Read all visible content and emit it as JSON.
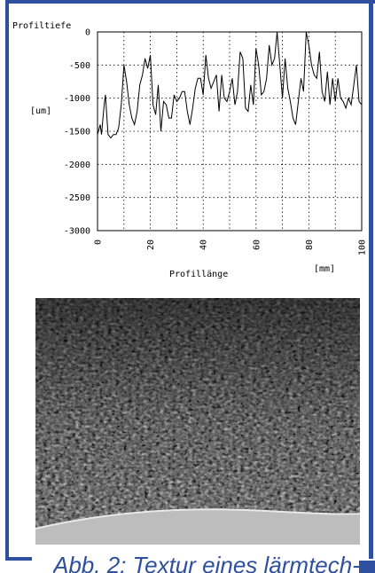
{
  "chart_data": {
    "type": "line",
    "ylabel": "Profiltiefe",
    "yunit": "[um]",
    "xlabel": "Profillänge",
    "xunit": "[mm]",
    "xlim": [
      0,
      100
    ],
    "ylim": [
      -3000,
      0
    ],
    "xticks": [
      0,
      20,
      40,
      60,
      80,
      100
    ],
    "yticks": [
      0,
      -500,
      -1000,
      -1500,
      -2000,
      -2500,
      -3000
    ],
    "grid": true,
    "series": [
      {
        "x": [
          0,
          1,
          1.5,
          2.5,
          3,
          3.5,
          4,
          5,
          6,
          7,
          8,
          9,
          10,
          11,
          12,
          13,
          14,
          15,
          16,
          17,
          18,
          19,
          20,
          21,
          22,
          23,
          24,
          25,
          26,
          27,
          28,
          29,
          30,
          31,
          32,
          33,
          34,
          35,
          36,
          37,
          38,
          39,
          40,
          41,
          42,
          43,
          44,
          45,
          46,
          47,
          48,
          49,
          50,
          51,
          52,
          53,
          54,
          55,
          56,
          57,
          58,
          59,
          60,
          61,
          62,
          63,
          64,
          65,
          66,
          67,
          68,
          69,
          70,
          71,
          72,
          73,
          74,
          75,
          76,
          77,
          78,
          79,
          80,
          81,
          82,
          83,
          84,
          85,
          86,
          87,
          88,
          89,
          90,
          91,
          92,
          93,
          94,
          95,
          96,
          97,
          98,
          99,
          100
        ],
        "y": [
          -1550,
          -1400,
          -1550,
          -1100,
          -950,
          -1250,
          -1550,
          -1600,
          -1550,
          -1550,
          -1450,
          -1100,
          -500,
          -750,
          -1100,
          -1300,
          -1400,
          -1200,
          -800,
          -650,
          -400,
          -550,
          -350,
          -1100,
          -1250,
          -800,
          -1500,
          -1050,
          -1100,
          -1300,
          -1300,
          -950,
          -1050,
          -1000,
          -900,
          -900,
          -1200,
          -1400,
          -1150,
          -850,
          -700,
          -700,
          -950,
          -350,
          -700,
          -850,
          -750,
          -650,
          -1200,
          -650,
          -1000,
          -1050,
          -900,
          -700,
          -1100,
          -900,
          -300,
          -400,
          -1150,
          -1200,
          -800,
          -1100,
          -250,
          -500,
          -950,
          -900,
          -700,
          -200,
          -500,
          -400,
          0,
          -500,
          -1000,
          -400,
          -850,
          -1050,
          -1300,
          -1400,
          -1050,
          -700,
          -900,
          0,
          -200,
          -500,
          -650,
          -700,
          -300,
          -900,
          -1050,
          -600,
          -1100,
          -700,
          -1050,
          -700,
          -1000,
          -1050,
          -1150,
          -1000,
          -1100,
          -800,
          -500,
          -1050,
          -1100
        ]
      }
    ]
  },
  "caption": "Abb. 2: Textur eines lärmtech-"
}
